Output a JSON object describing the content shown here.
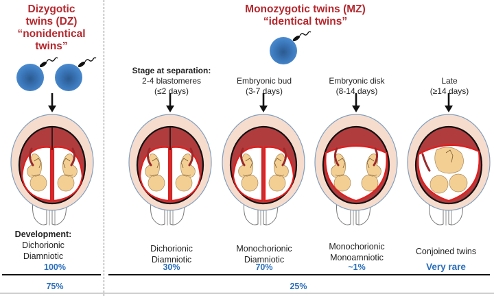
{
  "dizygotic": {
    "title_line1": "Dizygotic",
    "title_line2": "twins (DZ)",
    "title_line3": "“nonidentical twins”",
    "zygote_count": 2,
    "development_heading": "Development:",
    "development_line1": "Dichorionic",
    "development_line2": "Diamniotic",
    "within_percent": "100%",
    "overall_percent": "75%"
  },
  "monozygotic": {
    "title_line1": "Monozygotic twins (MZ)",
    "title_line2": "“identical twins”",
    "zygote_count": 1,
    "overall_percent": "25%",
    "stage_heading": "Stage at separation:",
    "stages": [
      {
        "name": "2-4 blastomeres",
        "timing": "(≤2 days)",
        "development_line1": "Dichorionic",
        "development_line2": "Diamniotic",
        "percent": "30%",
        "placenta": "dichorionic-diamniotic"
      },
      {
        "name": "Embryonic bud",
        "timing": "(3-7 days)",
        "development_line1": "Monochorionic",
        "development_line2": "Diamniotic",
        "percent": "70%",
        "placenta": "monochorionic-diamniotic"
      },
      {
        "name": "Embryonic disk",
        "timing": "(8-14 days)",
        "development_line1": "Monochorionic",
        "development_line2": "Monoamniotic",
        "percent": "~1%",
        "placenta": "monochorionic-monoamniotic"
      },
      {
        "name": "Late",
        "timing": "(≥14 days)",
        "development_line1": "Conjoined twins",
        "development_line2": "",
        "percent": "Very rare",
        "placenta": "conjoined"
      }
    ]
  },
  "colors": {
    "title_red": "#b5282e",
    "percent_blue": "#2a6ebb",
    "zygote_blue": "#3f7fc4",
    "uterus_outer": "#f6dccd",
    "uterus_stroke": "#7f9fc0",
    "placenta": "#b13c3e",
    "amnion": "#e41c1c",
    "fetus": "#f3cf93"
  }
}
